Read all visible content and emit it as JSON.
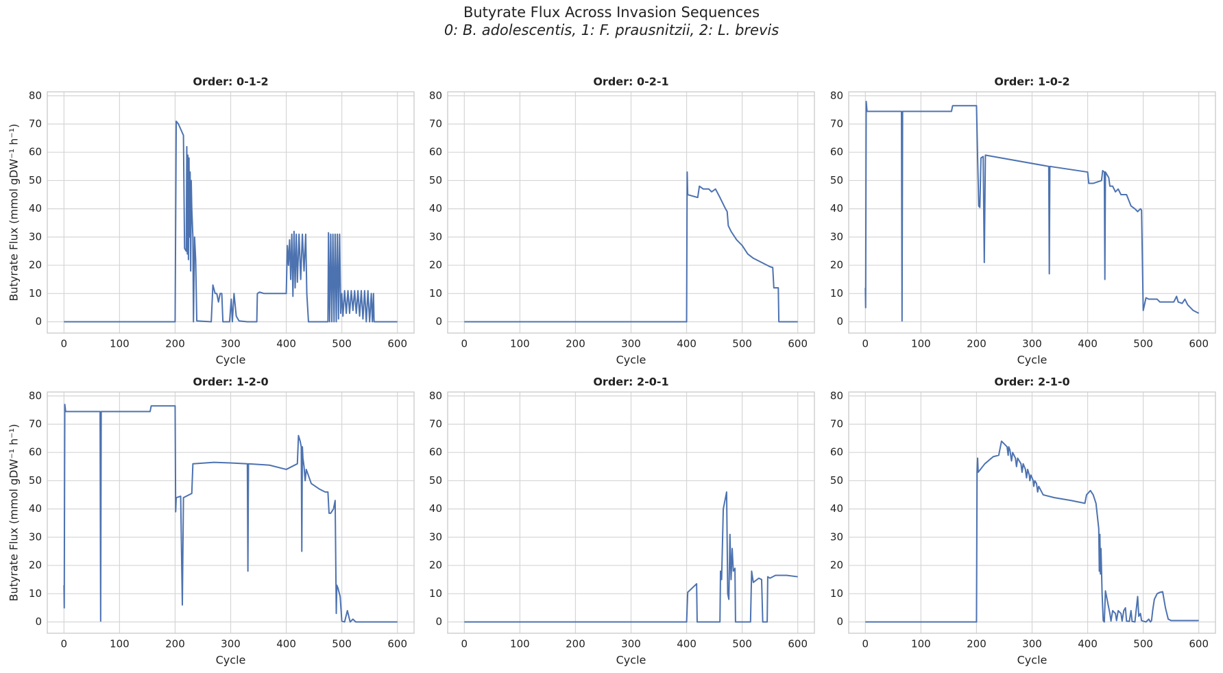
{
  "title": "Butyrate Flux Across Invasion Sequences",
  "subtitle": "0: B. adolescentis,  1: F. prausnitzii,  2: L. brevis",
  "chart_data": [
    {
      "type": "line",
      "title": "Order: 0-1-2",
      "xlabel": "Cycle",
      "ylabel": "Butyrate Flux (mmol gDW⁻¹ h⁻¹)",
      "xlim": [
        -30,
        630
      ],
      "xticks": [
        0,
        100,
        200,
        300,
        400,
        500,
        600
      ],
      "ylim": [
        -4,
        81.4
      ],
      "yticks": [
        0,
        10,
        20,
        30,
        40,
        50,
        60,
        70,
        80
      ],
      "grid": true,
      "color": "#4c72b0",
      "x": [
        0,
        200,
        202,
        206,
        215,
        217,
        220,
        221,
        222,
        223,
        224,
        225,
        226,
        227,
        228,
        229,
        230,
        232,
        233,
        235,
        237,
        239,
        265,
        268,
        272,
        275,
        278,
        281,
        284,
        286,
        298,
        301,
        303,
        306,
        310,
        315,
        330,
        347,
        348,
        352,
        360,
        400,
        402,
        404,
        406,
        408,
        410,
        412,
        414,
        416,
        418,
        420,
        423,
        426,
        429,
        432,
        435,
        437,
        440,
        475,
        476,
        478,
        480,
        482,
        484,
        486,
        488,
        490,
        492,
        494,
        496,
        498,
        500,
        502,
        505,
        508,
        511,
        514,
        517,
        520,
        523,
        526,
        529,
        532,
        535,
        538,
        541,
        544,
        547,
        550,
        553,
        555,
        557,
        558,
        600
      ],
      "values": [
        0,
        0,
        71,
        70,
        66,
        26,
        25,
        62,
        24,
        59,
        22,
        58,
        30,
        53,
        18,
        50,
        40,
        30,
        0,
        30,
        22,
        0.3,
        0,
        13,
        10,
        10,
        7,
        10,
        10,
        0,
        0,
        8,
        0,
        10,
        2,
        0.3,
        0,
        0,
        10,
        10.5,
        10,
        10,
        27,
        20,
        29,
        15,
        31,
        9,
        32,
        12,
        31,
        14,
        31,
        15,
        31,
        18,
        31,
        10,
        0,
        0,
        31.5,
        0,
        31,
        0,
        31,
        0,
        31,
        0,
        31,
        1,
        31,
        3,
        10,
        2,
        11,
        3,
        11,
        3,
        11,
        4,
        11,
        3,
        11,
        2,
        11,
        1,
        11,
        0,
        11,
        0,
        10,
        0,
        10,
        0,
        0
      ]
    },
    {
      "type": "line",
      "title": "Order: 0-2-1",
      "xlabel": "Cycle",
      "xlim": [
        -30,
        630
      ],
      "xticks": [
        0,
        100,
        200,
        300,
        400,
        500,
        600
      ],
      "ylim": [
        -4,
        81.4
      ],
      "yticks": [
        0,
        10,
        20,
        30,
        40,
        50,
        60,
        70,
        80
      ],
      "grid": true,
      "color": "#4c72b0",
      "x": [
        0,
        400,
        401,
        402,
        420,
        423,
        430,
        440,
        445,
        452,
        460,
        470,
        473,
        475,
        480,
        490,
        500,
        510,
        520,
        530,
        540,
        550,
        555,
        557,
        565,
        566,
        600
      ],
      "values": [
        0,
        0,
        53,
        45,
        44,
        48,
        47,
        47,
        46,
        47,
        44,
        40,
        39,
        34,
        32,
        29,
        27,
        24,
        22.5,
        21.5,
        20.5,
        19.5,
        19.2,
        12,
        12,
        0,
        0
      ]
    },
    {
      "type": "line",
      "title": "Order: 1-0-2",
      "xlabel": "Cycle",
      "xlim": [
        -30,
        630
      ],
      "xticks": [
        0,
        100,
        200,
        300,
        400,
        500,
        600
      ],
      "ylim": [
        -4,
        81.4
      ],
      "yticks": [
        0,
        10,
        20,
        30,
        40,
        50,
        60,
        70,
        80
      ],
      "grid": true,
      "color": "#4c72b0",
      "x": [
        0,
        0.5,
        1.5,
        3,
        65,
        66,
        67,
        155,
        157,
        200,
        202,
        204,
        206,
        208,
        212,
        214,
        216,
        330,
        331,
        332,
        400,
        402,
        410,
        425,
        427,
        430,
        431,
        432,
        438,
        440,
        445,
        450,
        455,
        460,
        470,
        478,
        485,
        490,
        495,
        497,
        500,
        505,
        510,
        525,
        530,
        555,
        560,
        563,
        570,
        575,
        580,
        590,
        600
      ],
      "values": [
        12,
        5,
        78,
        74.5,
        74.5,
        0.3,
        74.5,
        74.5,
        76.5,
        76.5,
        58,
        41,
        40.5,
        58,
        58.5,
        21,
        59,
        55,
        17,
        55,
        53,
        49,
        49,
        50,
        53.5,
        53,
        15,
        53,
        51,
        48,
        48,
        46,
        47,
        45,
        45,
        41,
        40,
        39,
        40,
        39.5,
        4,
        8.5,
        8,
        8,
        7,
        7,
        9,
        7,
        6.5,
        8,
        6,
        4,
        3
      ]
    },
    {
      "type": "line",
      "title": "Order: 1-2-0",
      "xlabel": "Cycle",
      "ylabel": "Butyrate Flux (mmol gDW⁻¹ h⁻¹)",
      "xlim": [
        -30,
        630
      ],
      "xticks": [
        0,
        100,
        200,
        300,
        400,
        500,
        600
      ],
      "ylim": [
        -4,
        81.4
      ],
      "yticks": [
        0,
        10,
        20,
        30,
        40,
        50,
        60,
        70,
        80
      ],
      "grid": true,
      "color": "#4c72b0",
      "x": [
        0,
        0.5,
        1.5,
        3,
        65,
        66,
        67,
        155,
        157,
        200,
        201,
        202,
        210,
        213,
        215,
        230,
        232,
        270,
        300,
        330,
        331,
        332,
        370,
        400,
        420,
        422,
        425,
        427,
        428,
        429,
        430,
        432,
        434,
        436,
        445,
        460,
        470,
        475,
        477,
        480,
        485,
        488,
        490,
        491,
        493,
        497,
        500,
        505,
        510,
        515,
        520,
        525,
        600
      ],
      "values": [
        13,
        5,
        77,
        74.5,
        74.5,
        0.3,
        74.5,
        74.5,
        76.5,
        76.5,
        39,
        44,
        44.5,
        6,
        44,
        45.5,
        56,
        56.5,
        56.3,
        56,
        18,
        56,
        55.5,
        54,
        56,
        66,
        64,
        62,
        25,
        62,
        58,
        55,
        50,
        54,
        49,
        47,
        46,
        46,
        38.5,
        38.5,
        40,
        43,
        3,
        13,
        12,
        9,
        0.3,
        0,
        4,
        0,
        1,
        0,
        0
      ]
    },
    {
      "type": "line",
      "title": "Order: 2-0-1",
      "xlabel": "Cycle",
      "xlim": [
        -30,
        630
      ],
      "xticks": [
        0,
        100,
        200,
        300,
        400,
        500,
        600
      ],
      "ylim": [
        -4,
        81.4
      ],
      "yticks": [
        0,
        10,
        20,
        30,
        40,
        50,
        60,
        70,
        80
      ],
      "grid": true,
      "color": "#4c72b0",
      "x": [
        0,
        400,
        402,
        410,
        418,
        419,
        445,
        460,
        461,
        463,
        466,
        470,
        472,
        474,
        476,
        478,
        480,
        482,
        484,
        487,
        488,
        515,
        517,
        520,
        530,
        535,
        537,
        545,
        546,
        550,
        560,
        580,
        600
      ],
      "values": [
        0,
        0,
        10.5,
        12,
        13.5,
        0,
        0,
        0,
        18,
        15,
        40,
        44,
        46,
        10,
        8,
        31,
        15,
        26,
        18,
        19,
        0,
        0,
        18,
        14,
        15.5,
        15,
        0,
        0,
        16,
        15.5,
        16.5,
        16.5,
        16
      ]
    },
    {
      "type": "line",
      "title": "Order: 2-1-0",
      "xlabel": "Cycle",
      "xlim": [
        -30,
        630
      ],
      "xticks": [
        0,
        100,
        200,
        300,
        400,
        500,
        600
      ],
      "ylim": [
        -4,
        81.4
      ],
      "yticks": [
        0,
        10,
        20,
        30,
        40,
        50,
        60,
        70,
        80
      ],
      "grid": true,
      "color": "#4c72b0",
      "x": [
        0,
        200,
        201,
        202,
        203,
        215,
        230,
        240,
        245,
        250,
        255,
        257,
        258,
        260,
        263,
        265,
        270,
        272,
        274,
        280,
        282,
        284,
        288,
        290,
        292,
        295,
        296,
        298,
        302,
        303,
        305,
        308,
        310,
        312,
        320,
        340,
        370,
        395,
        398,
        405,
        410,
        415,
        420,
        421,
        422,
        423,
        424,
        426,
        428,
        430,
        432,
        435,
        438,
        440,
        442,
        445,
        450,
        452,
        455,
        460,
        462,
        465,
        468,
        470,
        475,
        478,
        480,
        485,
        490,
        492,
        495,
        497,
        500,
        505,
        510,
        513,
        515,
        517,
        520,
        525,
        530,
        535,
        540,
        545,
        550,
        600
      ],
      "values": [
        0,
        0,
        53,
        58,
        53,
        56,
        58.5,
        59,
        64,
        63,
        62,
        59,
        62,
        61,
        57,
        60,
        58,
        55,
        58,
        56,
        53,
        56,
        54,
        51,
        54,
        52,
        50,
        52,
        50,
        48,
        50,
        49,
        46,
        48,
        45,
        44,
        43,
        42,
        45,
        46.5,
        45,
        42,
        33,
        18,
        31,
        17,
        26,
        10,
        0.5,
        0,
        11,
        8,
        5,
        3,
        0.3,
        4,
        3,
        0.5,
        4,
        3,
        0.3,
        4,
        5,
        0.3,
        0.2,
        4,
        0.2,
        0,
        9,
        2,
        3,
        0.5,
        0.3,
        0,
        1,
        0,
        0.5,
        4,
        8,
        10,
        10.5,
        10.7,
        5,
        1,
        0.5,
        0.5
      ]
    }
  ]
}
